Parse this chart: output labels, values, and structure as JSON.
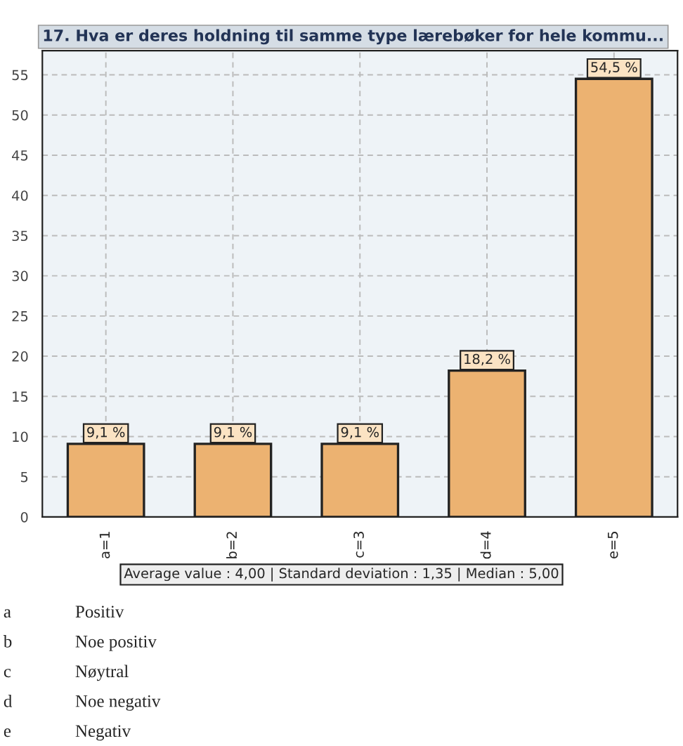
{
  "chart_data": {
    "type": "bar",
    "title": "17. Hva er deres holdning til samme type lærebøker for hele kommu...",
    "categories": [
      "a=1",
      "b=2",
      "c=3",
      "d=4",
      "e=5"
    ],
    "values": [
      9.1,
      9.1,
      9.1,
      18.2,
      54.5
    ],
    "value_labels": [
      "9,1 %",
      "9,1 %",
      "9,1 %",
      "18,2 %",
      "54,5 %"
    ],
    "color": "#ecb271",
    "ylim": [
      0,
      58
    ],
    "yticks": [
      0,
      5,
      10,
      15,
      20,
      25,
      30,
      35,
      40,
      45,
      50,
      55
    ],
    "grid": true,
    "annotations": [
      "Average value : 4,00 | Standard deviation : 1,35 | Median : 5,00",
      "a Positiv",
      "b Noe positiv",
      "c Nøytral",
      "d Noe negativ",
      "e Negativ"
    ]
  }
}
